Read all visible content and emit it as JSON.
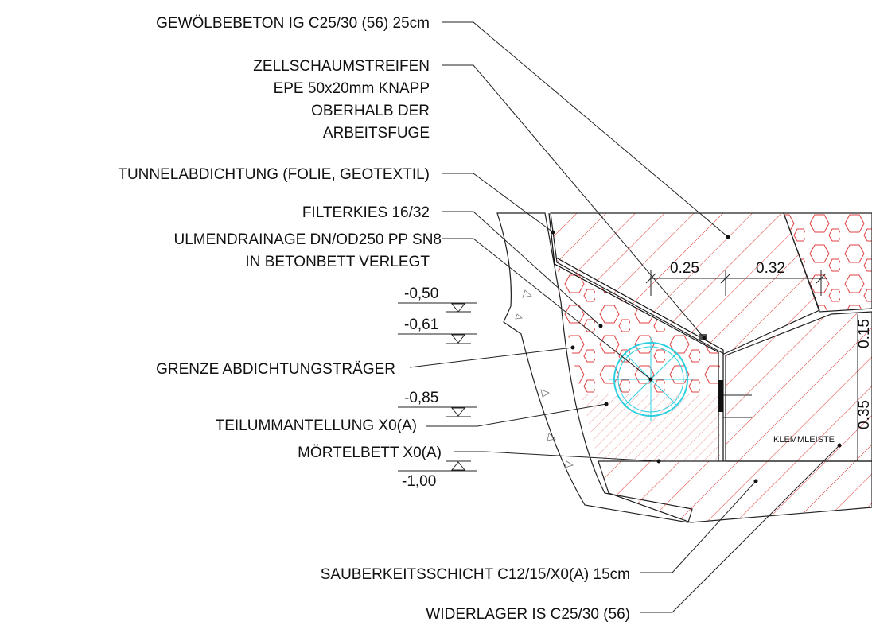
{
  "labels": [
    {
      "lines": [
        "GEWÖLBEBETON IG C25/30 (56) 25cm"
      ]
    },
    {
      "lines": [
        "ZELLSCHAUMSTREIFEN",
        "EPE 50x20mm KNAPP",
        "OBERHALB DER",
        "ARBEITSFUGE"
      ]
    },
    {
      "lines": [
        "TUNNELABDICHTUNG (FOLIE, GEOTEXTIL)"
      ]
    },
    {
      "lines": [
        "FILTERKIES 16/32"
      ]
    },
    {
      "lines": [
        "ULMENDRAINAGE DN/OD250 PP SN8",
        "IN BETONBETT VERLEGT"
      ]
    },
    {
      "lines": [
        "GRENZE ABDICHTUNGSTRÄGER"
      ]
    },
    {
      "lines": [
        "TEILUMMANTELLUNG X0(A)"
      ]
    },
    {
      "lines": [
        "MÖRTELBETT X0(A)"
      ]
    },
    {
      "lines": [
        "SAUBERKEITSSCHICHT C12/15/X0(A) 15cm"
      ]
    },
    {
      "lines": [
        "WIDERLAGER IS C25/30 (56)"
      ]
    }
  ],
  "levels": [
    "-0,50",
    "-0,61",
    "-0,85",
    "-1,00"
  ],
  "dimensions": [
    "0.25",
    "0.32",
    "0.15",
    "0.35"
  ],
  "note": "KLEMMLEISTE"
}
